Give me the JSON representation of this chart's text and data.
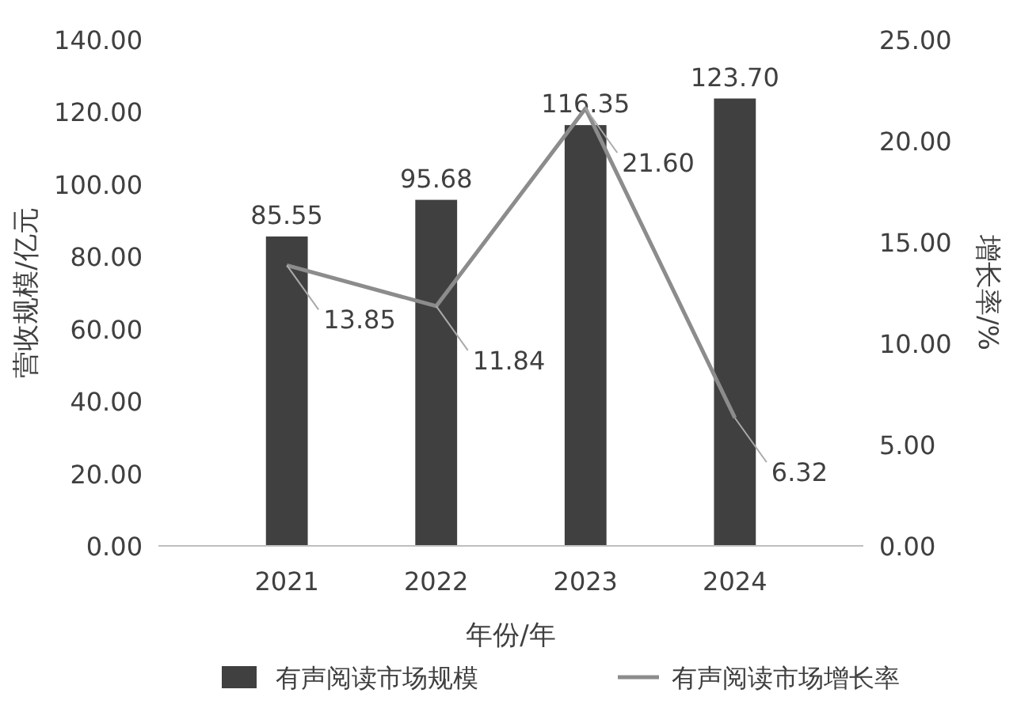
{
  "chart_data": {
    "type": "bar",
    "xlabel": "年份/年",
    "ylabel": "营收规模/亿元",
    "y2label": "增长率/%",
    "categories": [
      "2021",
      "2022",
      "2023",
      "2024"
    ],
    "series": [
      {
        "name": "有声阅读市场规模",
        "color": "#404040",
        "values": [
          85.55,
          95.68,
          116.35,
          123.7
        ],
        "value_labels": [
          "85.55",
          "95.68",
          "116.35",
          "123.70"
        ]
      },
      {
        "name": "有声阅读市场增长率",
        "type": "line",
        "axis": "y2",
        "color": "#8c8c8c",
        "values": [
          13.85,
          11.84,
          21.6,
          6.32
        ],
        "value_labels": [
          "13.85",
          "11.84",
          "21.60",
          "6.32"
        ]
      }
    ],
    "ylim": [
      0,
      140
    ],
    "yticks": [
      {
        "value": 0,
        "label": "0.00"
      },
      {
        "value": 20,
        "label": "20.00"
      },
      {
        "value": 40,
        "label": "40.00"
      },
      {
        "value": 60,
        "label": "60.00"
      },
      {
        "value": 80,
        "label": "80.00"
      },
      {
        "value": 100,
        "label": "100.00"
      },
      {
        "value": 120,
        "label": "120.00"
      },
      {
        "value": 140,
        "label": "140.00"
      }
    ],
    "y2lim": [
      0,
      25
    ],
    "y2ticks": [
      {
        "value": 0,
        "label": "0.00"
      },
      {
        "value": 5,
        "label": "5.00"
      },
      {
        "value": 10,
        "label": "10.00"
      },
      {
        "value": 15,
        "label": "15.00"
      },
      {
        "value": 20,
        "label": "20.00"
      },
      {
        "value": 25,
        "label": "25.00"
      }
    ],
    "legend": "bottom",
    "marker": "none",
    "line_style": "solid"
  }
}
